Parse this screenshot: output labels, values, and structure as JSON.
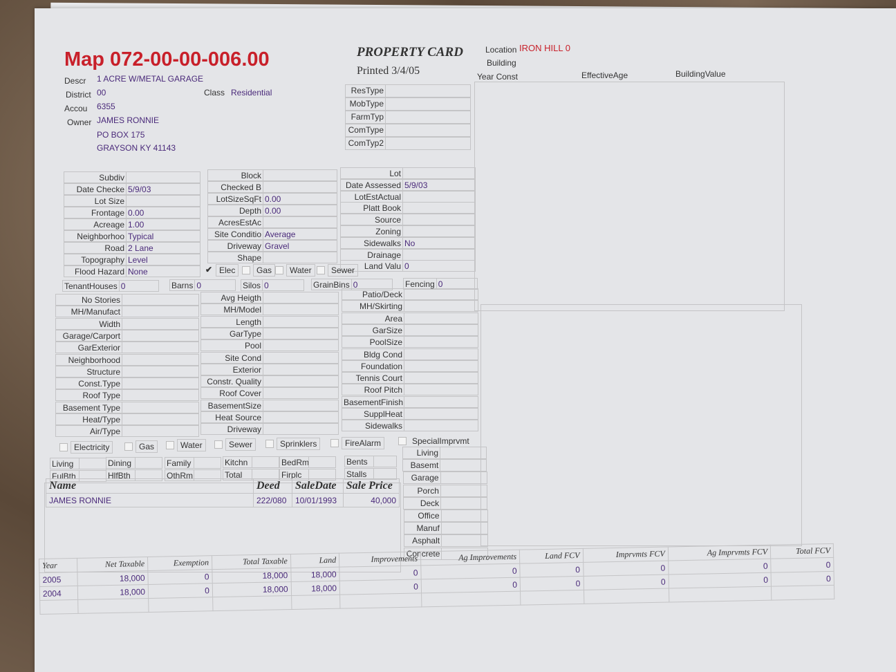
{
  "header": {
    "map": "Map 072-00-00-006.00",
    "title": "PROPERTY CARD",
    "printed": "Printed 3/4/05",
    "location_label": "Location",
    "location_value": "IRON HILL 0",
    "building_label": "Building",
    "year_const": "Year Const",
    "effective_age": "EffectiveAge",
    "building_value": "BuildingValue"
  },
  "info": [
    {
      "label": "Descr",
      "value": "1 ACRE W/METAL GARAGE"
    },
    {
      "label": "District",
      "value": "00"
    },
    {
      "label": "Accou",
      "value": "6355"
    },
    {
      "label": "Owner",
      "value": "JAMES RONNIE"
    }
  ],
  "owner_address": [
    "PO BOX 175",
    "GRAYSON KY 41143"
  ],
  "class": {
    "label": "Class",
    "value": "Residential"
  },
  "types": [
    "ResType",
    "MobType",
    "FarmTyp",
    "ComType",
    "ComTyp2"
  ],
  "land_col1": [
    {
      "l": "Subdiv",
      "v": ""
    },
    {
      "l": "Date Checke",
      "v": "5/9/03"
    },
    {
      "l": "Lot Size",
      "v": ""
    },
    {
      "l": "Frontage",
      "v": "0.00"
    },
    {
      "l": "Acreage",
      "v": "1.00"
    },
    {
      "l": "Neighborhoo",
      "v": "Typical"
    },
    {
      "l": "Road",
      "v": "2 Lane"
    },
    {
      "l": "Topography",
      "v": "Level"
    },
    {
      "l": "Flood Hazard",
      "v": "None"
    }
  ],
  "land_col2": [
    {
      "l": "Block",
      "v": ""
    },
    {
      "l": "Checked B",
      "v": ""
    },
    {
      "l": "LotSizeSqFt",
      "v": "0.00"
    },
    {
      "l": "Depth",
      "v": "0.00"
    },
    {
      "l": "AcresEstAc",
      "v": ""
    },
    {
      "l": "Site Conditio",
      "v": "Average"
    },
    {
      "l": "Driveway",
      "v": "Gravel"
    },
    {
      "l": "Shape",
      "v": ""
    }
  ],
  "land_col3": [
    {
      "l": "Lot",
      "v": ""
    },
    {
      "l": "Date Assessed",
      "v": "5/9/03"
    },
    {
      "l": "LotEstActual",
      "v": ""
    },
    {
      "l": "Platt Book",
      "v": ""
    },
    {
      "l": "Source",
      "v": ""
    },
    {
      "l": "Zoning",
      "v": ""
    },
    {
      "l": "Sidewalks",
      "v": "No"
    },
    {
      "l": "Drainage",
      "v": ""
    },
    {
      "l": "Land Valu",
      "v": "0"
    }
  ],
  "utilities": [
    {
      "l": "Elec",
      "checked": true
    },
    {
      "l": "Gas",
      "checked": false
    },
    {
      "l": "Water",
      "checked": false
    },
    {
      "l": "Sewer",
      "checked": false
    }
  ],
  "outbuildings": [
    {
      "l": "TenantHouses",
      "v": "0"
    },
    {
      "l": "Barns",
      "v": "0"
    },
    {
      "l": "Silos",
      "v": "0"
    },
    {
      "l": "GrainBins",
      "v": "0"
    },
    {
      "l": "Fencing",
      "v": "0"
    }
  ],
  "bldg_col1": [
    "No Stories",
    "MH/Manufact",
    "Width",
    "Garage/Carport",
    "GarExterior",
    "Neighborhood",
    "Structure",
    "Const.Type",
    "Roof Type",
    "Basement Type",
    "Heat/Type",
    "Air/Type"
  ],
  "bldg_col2": [
    "Avg Heigth",
    "MH/Model",
    "Length",
    "GarType",
    "Pool",
    "Site Cond",
    "Exterior",
    "Constr. Quality",
    "Roof Cover",
    "BasementSize",
    "Heat Source",
    "Driveway"
  ],
  "bldg_col3": [
    "Patio/Deck",
    "MH/Skirting",
    "Area",
    "GarSize",
    "PoolSize",
    "Bldg Cond",
    "Foundation",
    "Tennis Court",
    "Roof Pitch",
    "BasementFinish",
    "SupplHeat",
    "Sidewalks"
  ],
  "features": [
    "Electricity",
    "Gas",
    "Water",
    "Sewer",
    "Sprinklers",
    "FireAlarm",
    "SpecialImprvmt"
  ],
  "rooms_row1": [
    "Living",
    "Dining",
    "Family",
    "Kitchn",
    "BedRm",
    "Bents"
  ],
  "rooms_row2": [
    "FulBth",
    "HlfBth",
    "OthRm",
    "Total",
    "Firplc",
    "Stalls"
  ],
  "areas": [
    "Living",
    "Basemt",
    "Garage",
    "Porch",
    "Deck",
    "Office",
    "Manuf",
    "Asphalt",
    "Concrete"
  ],
  "sales": {
    "headers": [
      "Name",
      "Deed",
      "SaleDate",
      "Sale Price"
    ],
    "rows": [
      [
        "JAMES RONNIE",
        "222/080",
        "10/01/1993",
        "40,000"
      ]
    ]
  },
  "tax": {
    "headers": [
      "Year",
      "Net Taxable",
      "Exemption",
      "Total Taxable",
      "Land",
      "Improvements",
      "Ag Improvements",
      "Land FCV",
      "Imprvmts FCV",
      "Ag Imprvmts FCV",
      "Total FCV"
    ],
    "rows": [
      [
        "2005",
        "18,000",
        "0",
        "18,000",
        "18,000",
        "0",
        "0",
        "0",
        "0",
        "0",
        "0"
      ],
      [
        "2004",
        "18,000",
        "0",
        "18,000",
        "18,000",
        "0",
        "0",
        "0",
        "0",
        "0",
        "0"
      ]
    ]
  }
}
